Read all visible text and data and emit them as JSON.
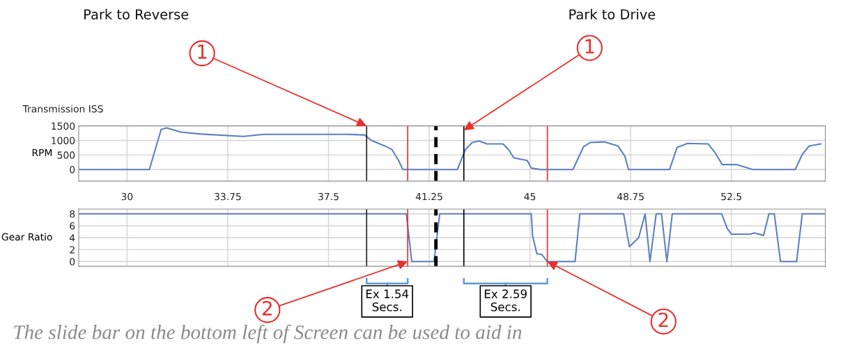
{
  "chart_data": [
    {
      "type": "line",
      "title": "Transmission ISS",
      "ylabel": "RPM",
      "annotations": [
        "Park to Reverse",
        "Park to Drive",
        {
          "text": "1",
          "x": 38.92,
          "y": 1500
        },
        {
          "text": "1",
          "x": 42.54,
          "y": 1350
        }
      ],
      "series": [
        {
          "color": "#5b7fc4",
          "x": [
            28.2,
            30.83,
            31.27,
            31.47,
            32.0,
            32.77,
            34.32,
            35.1,
            36.9,
            38.2,
            38.84,
            39.1,
            39.6,
            39.86,
            40.1,
            40.27,
            42.3,
            42.6,
            42.85,
            43.1,
            43.4,
            44.0,
            44.2,
            44.4,
            44.9,
            45.05,
            45.4,
            46.6,
            47.0,
            47.25,
            47.77,
            48.28,
            48.54,
            48.67,
            50.2,
            50.48,
            50.87,
            51.64,
            51.9,
            52.16,
            52.68,
            53.3,
            54.88,
            55.14,
            55.4,
            55.83
          ],
          "values": [
            0,
            0,
            1380,
            1430,
            1290,
            1220,
            1140,
            1210,
            1210,
            1210,
            1190,
            1000,
            810,
            690,
            330,
            0,
            0,
            690,
            930,
            980,
            880,
            880,
            690,
            400,
            310,
            50,
            0,
            0,
            790,
            930,
            950,
            810,
            450,
            0,
            0,
            760,
            900,
            880,
            570,
            170,
            170,
            0,
            0,
            520,
            810,
            880
          ]
        }
      ],
      "xlim": [
        28.2,
        56
      ],
      "xticks": [
        30,
        33.75,
        37.5,
        41.25,
        45,
        48.75,
        52.5
      ],
      "ylim": [
        -400,
        1500
      ],
      "yticks": [
        0,
        500,
        1000,
        1500
      ],
      "grid": true,
      "ref_lines": [
        {
          "axis": "x",
          "value": 38.92,
          "color": "#222222"
        },
        {
          "axis": "x",
          "value": 40.45,
          "color": "#e8302c"
        },
        {
          "axis": "x",
          "value": 41.5,
          "color": "#000000",
          "line_style": "dashed"
        },
        {
          "axis": "x",
          "value": 42.54,
          "color": "#000000"
        },
        {
          "axis": "x",
          "value": 45.65,
          "color": "#e8302c"
        }
      ]
    },
    {
      "type": "line",
      "ylabel": "Gear Ratio",
      "annotations": [
        {
          "text": "2",
          "x": 40.45,
          "y": 0
        },
        {
          "text": "2",
          "x": 45.65,
          "y": 0
        },
        "Ex 1.54\nSecs.",
        "Ex 2.59\nSecs.",
        "The slide bar on the bottom left of Screen can be used to aid in"
      ],
      "series": [
        {
          "color": "#5b7fc4",
          "x": [
            28.2,
            40.4,
            40.6,
            41.43,
            41.64,
            45.05,
            45.1,
            45.26,
            45.44,
            45.65,
            46.68,
            46.86,
            48.49,
            48.7,
            49.05,
            49.29,
            49.47,
            49.7,
            49.9,
            50.1,
            50.3,
            52.14,
            52.35,
            52.5,
            53.2,
            53.35,
            53.7,
            53.9,
            54.1,
            54.33,
            54.93,
            55.14,
            55.96
          ],
          "values": [
            8,
            8,
            0,
            0,
            8,
            8,
            4.3,
            1.3,
            1.2,
            0,
            0,
            8,
            8,
            2.5,
            4,
            8,
            0,
            8,
            8,
            0,
            8,
            8,
            5.5,
            4.6,
            4.6,
            4.8,
            4.4,
            8,
            8,
            0,
            0,
            8,
            8
          ]
        }
      ],
      "xlim": [
        28.2,
        56
      ],
      "xticks": [
        30,
        33.75,
        37.5,
        41.25,
        45,
        48.75,
        52.5
      ],
      "tick_labels": "y",
      "ylim": [
        -0.8,
        8.8
      ],
      "yticks": [
        0,
        2,
        4,
        6,
        8
      ],
      "grid": true,
      "ref_lines": [
        {
          "axis": "x",
          "value": 38.92,
          "color": "#222222"
        },
        {
          "axis": "x",
          "value": 40.45,
          "color": "#e8302c"
        },
        {
          "axis": "x",
          "value": 41.5,
          "color": "#000000",
          "line_style": "dashed"
        },
        {
          "axis": "x",
          "value": 42.54,
          "color": "#000000"
        },
        {
          "axis": "x",
          "value": 45.65,
          "color": "#e8302c"
        }
      ]
    }
  ]
}
